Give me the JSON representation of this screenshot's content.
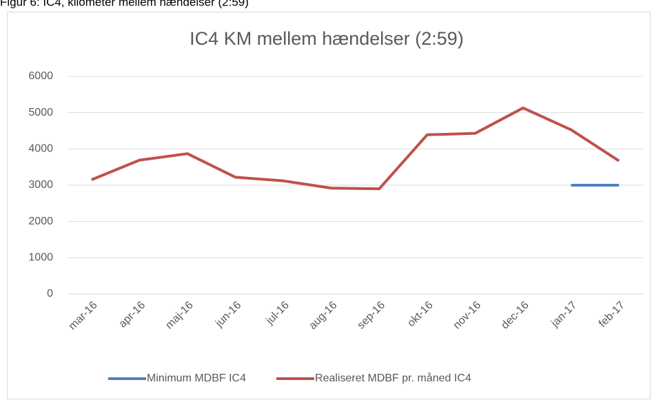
{
  "caption": "Figur 6: IC4, kilometer mellem hændelser (2:59)",
  "chart_data": {
    "type": "line",
    "title": "IC4 KM mellem hændelser (2:59)",
    "categories": [
      "mar-16",
      "apr-16",
      "maj-16",
      "jun-16",
      "jul-16",
      "aug-16",
      "sep-16",
      "okt-16",
      "nov-16",
      "dec-16",
      "jan-17",
      "feb-17"
    ],
    "series": [
      {
        "name": "Minimum MDBF IC4",
        "color": "#4f81bd",
        "values": [
          null,
          null,
          null,
          null,
          null,
          null,
          null,
          null,
          null,
          null,
          3000,
          3000
        ]
      },
      {
        "name": "Realiseret MDBF pr. måned IC4",
        "color": "#c0504d",
        "values": [
          3150,
          3690,
          3870,
          3220,
          3120,
          2920,
          2900,
          4390,
          4430,
          5130,
          4530,
          3670
        ]
      }
    ],
    "ylim": [
      0,
      6000
    ],
    "yticks": [
      0,
      1000,
      2000,
      3000,
      4000,
      5000,
      6000
    ],
    "grid": true,
    "legend": "bottom"
  }
}
